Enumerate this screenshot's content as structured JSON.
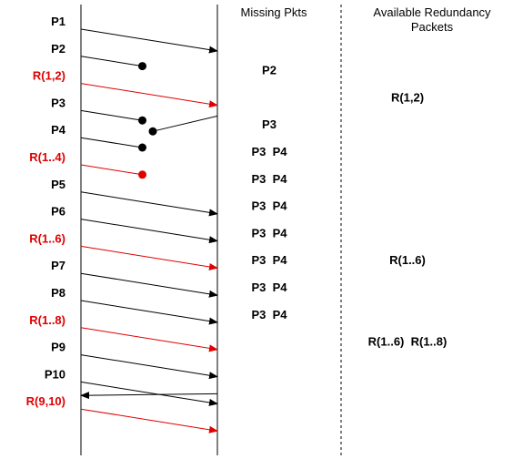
{
  "headers": {
    "missing": "Missing Pkts",
    "redundancy_line1": "Available Redundancy",
    "redundancy_line2": "Packets"
  },
  "colors": {
    "data": "#000000",
    "redundancy": "#e00000"
  },
  "packets": [
    {
      "label": "P1",
      "kind": "data",
      "outcome": "delivered"
    },
    {
      "label": "P2",
      "kind": "data",
      "outcome": "lost"
    },
    {
      "label": "R(1,2)",
      "kind": "redundancy",
      "outcome": "delivered"
    },
    {
      "label": "P3",
      "kind": "data",
      "outcome": "lost"
    },
    {
      "label": "P4",
      "kind": "data",
      "outcome": "lost"
    },
    {
      "label": "R(1..4)",
      "kind": "redundancy",
      "outcome": "lost"
    },
    {
      "label": "P5",
      "kind": "data",
      "outcome": "delivered"
    },
    {
      "label": "P6",
      "kind": "data",
      "outcome": "delivered"
    },
    {
      "label": "R(1..6)",
      "kind": "redundancy",
      "outcome": "delivered"
    },
    {
      "label": "P7",
      "kind": "data",
      "outcome": "delivered"
    },
    {
      "label": "P8",
      "kind": "data",
      "outcome": "delivered"
    },
    {
      "label": "R(1..8)",
      "kind": "redundancy",
      "outcome": "delivered"
    },
    {
      "label": "P9",
      "kind": "data",
      "outcome": "delivered"
    },
    {
      "label": "P10",
      "kind": "data",
      "outcome": "delivered"
    },
    {
      "label": "R(9,10)",
      "kind": "redundancy",
      "outcome": "delivered"
    }
  ],
  "feedback": [
    {
      "from_row": 3,
      "to_row": 3,
      "label": ""
    },
    {
      "from_row": 13,
      "to_row": 14,
      "label": ""
    }
  ],
  "missing_rows": [
    {
      "row": 2,
      "text": "P2"
    },
    {
      "row": 4,
      "text": "P3"
    },
    {
      "row": 5,
      "text": "P3  P4"
    },
    {
      "row": 6,
      "text": "P3  P4"
    },
    {
      "row": 7,
      "text": "P3  P4"
    },
    {
      "row": 8,
      "text": "P3  P4"
    },
    {
      "row": 9,
      "text": "P3  P4"
    },
    {
      "row": 10,
      "text": "P3  P4"
    },
    {
      "row": 11,
      "text": "P3  P4"
    }
  ],
  "redundancy_rows": [
    {
      "row": 3,
      "text": "R(1,2)"
    },
    {
      "row": 9,
      "text": "R(1..6)"
    },
    {
      "row": 12,
      "text": "R(1..6)  R(1..8)"
    }
  ]
}
